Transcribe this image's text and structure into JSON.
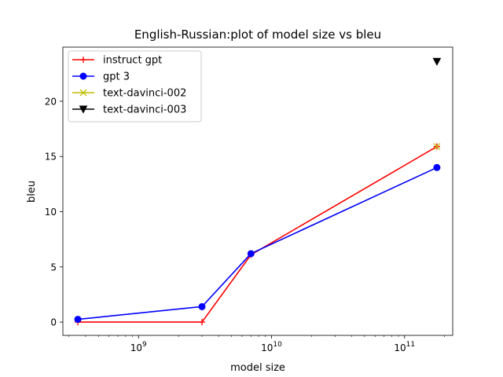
{
  "chart_data": {
    "type": "line",
    "title": "English-Russian:plot of model size vs bleu",
    "xlabel": "model size",
    "ylabel": "bleu",
    "xscale": "log",
    "xlim": [
      270000000,
      230000000000
    ],
    "ylim": [
      -1.2,
      24.9
    ],
    "xticks": [
      {
        "value": 1000000000,
        "base": "10",
        "exp": "9"
      },
      {
        "value": 10000000000,
        "base": "10",
        "exp": "10"
      },
      {
        "value": 100000000000,
        "base": "10",
        "exp": "11"
      }
    ],
    "yticks": [
      {
        "value": 0,
        "label": "0"
      },
      {
        "value": 5,
        "label": "5"
      },
      {
        "value": 10,
        "label": "10"
      },
      {
        "value": 15,
        "label": "15"
      },
      {
        "value": 20,
        "label": "20"
      }
    ],
    "grid": false,
    "legend_position": "top-left",
    "series": [
      {
        "name": "instruct gpt",
        "color": "#ff0000",
        "marker": "plus",
        "x": [
          350000000,
          3000000000,
          7000000000,
          175000000000
        ],
        "y": [
          0.0,
          0.0,
          6.1,
          15.9
        ]
      },
      {
        "name": "gpt 3",
        "color": "#0000ff",
        "marker": "circle",
        "x": [
          350000000,
          3000000000,
          7000000000,
          175000000000
        ],
        "y": [
          0.25,
          1.4,
          6.2,
          14.0
        ]
      },
      {
        "name": "text-davinci-002",
        "color": "#bfbf00",
        "marker": "x",
        "x": [
          175000000000
        ],
        "y": [
          15.9
        ]
      },
      {
        "name": "text-davinci-003",
        "color": "#000000",
        "marker": "triangle-down",
        "x": [
          175000000000
        ],
        "y": [
          23.6
        ]
      }
    ]
  }
}
